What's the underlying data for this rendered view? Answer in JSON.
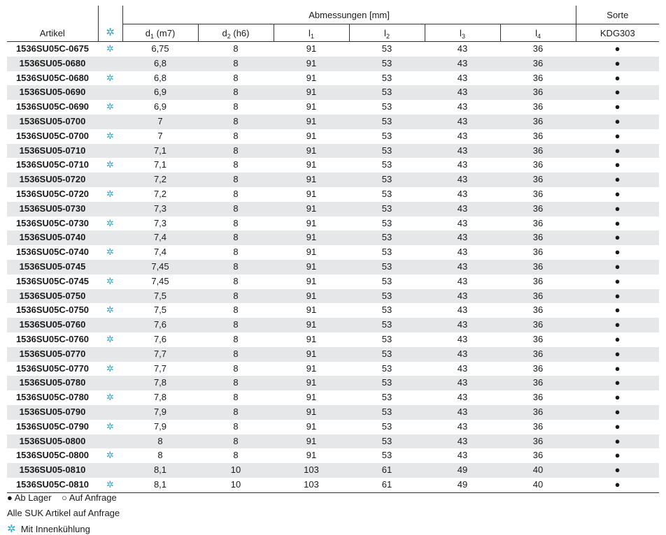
{
  "header": {
    "artikel": "Artikel",
    "ice_symbol": "✲",
    "abmessungen": "Abmessungen [mm]",
    "sorte": "Sorte",
    "d1": "d",
    "d1_sub": "1",
    "d1_tol": " (m7)",
    "d2": "d",
    "d2_sub": "2",
    "d2_tol": " (h6)",
    "l1": "l",
    "l1_sub": "1",
    "l2": "l",
    "l2_sub": "2",
    "l3": "l",
    "l3_sub": "3",
    "l4": "l",
    "l4_sub": "4",
    "kdg": "KDG303"
  },
  "rows": [
    {
      "artikel": "1536SU05C-0675",
      "ice": "✲",
      "d1": "6,75",
      "d2": "8",
      "l1": "91",
      "l2": "53",
      "l3": "43",
      "l4": "36",
      "sorte": "●"
    },
    {
      "artikel": "1536SU05-0680",
      "ice": "",
      "d1": "6,8",
      "d2": "8",
      "l1": "91",
      "l2": "53",
      "l3": "43",
      "l4": "36",
      "sorte": "●"
    },
    {
      "artikel": "1536SU05C-0680",
      "ice": "✲",
      "d1": "6,8",
      "d2": "8",
      "l1": "91",
      "l2": "53",
      "l3": "43",
      "l4": "36",
      "sorte": "●"
    },
    {
      "artikel": "1536SU05-0690",
      "ice": "",
      "d1": "6,9",
      "d2": "8",
      "l1": "91",
      "l2": "53",
      "l3": "43",
      "l4": "36",
      "sorte": "●"
    },
    {
      "artikel": "1536SU05C-0690",
      "ice": "✲",
      "d1": "6,9",
      "d2": "8",
      "l1": "91",
      "l2": "53",
      "l3": "43",
      "l4": "36",
      "sorte": "●"
    },
    {
      "artikel": "1536SU05-0700",
      "ice": "",
      "d1": "7",
      "d2": "8",
      "l1": "91",
      "l2": "53",
      "l3": "43",
      "l4": "36",
      "sorte": "●"
    },
    {
      "artikel": "1536SU05C-0700",
      "ice": "✲",
      "d1": "7",
      "d2": "8",
      "l1": "91",
      "l2": "53",
      "l3": "43",
      "l4": "36",
      "sorte": "●"
    },
    {
      "artikel": "1536SU05-0710",
      "ice": "",
      "d1": "7,1",
      "d2": "8",
      "l1": "91",
      "l2": "53",
      "l3": "43",
      "l4": "36",
      "sorte": "●"
    },
    {
      "artikel": "1536SU05C-0710",
      "ice": "✲",
      "d1": "7,1",
      "d2": "8",
      "l1": "91",
      "l2": "53",
      "l3": "43",
      "l4": "36",
      "sorte": "●"
    },
    {
      "artikel": "1536SU05-0720",
      "ice": "",
      "d1": "7,2",
      "d2": "8",
      "l1": "91",
      "l2": "53",
      "l3": "43",
      "l4": "36",
      "sorte": "●"
    },
    {
      "artikel": "1536SU05C-0720",
      "ice": "✲",
      "d1": "7,2",
      "d2": "8",
      "l1": "91",
      "l2": "53",
      "l3": "43",
      "l4": "36",
      "sorte": "●"
    },
    {
      "artikel": "1536SU05-0730",
      "ice": "",
      "d1": "7,3",
      "d2": "8",
      "l1": "91",
      "l2": "53",
      "l3": "43",
      "l4": "36",
      "sorte": "●"
    },
    {
      "artikel": "1536SU05C-0730",
      "ice": "✲",
      "d1": "7,3",
      "d2": "8",
      "l1": "91",
      "l2": "53",
      "l3": "43",
      "l4": "36",
      "sorte": "●"
    },
    {
      "artikel": "1536SU05-0740",
      "ice": "",
      "d1": "7,4",
      "d2": "8",
      "l1": "91",
      "l2": "53",
      "l3": "43",
      "l4": "36",
      "sorte": "●"
    },
    {
      "artikel": "1536SU05C-0740",
      "ice": "✲",
      "d1": "7,4",
      "d2": "8",
      "l1": "91",
      "l2": "53",
      "l3": "43",
      "l4": "36",
      "sorte": "●"
    },
    {
      "artikel": "1536SU05-0745",
      "ice": "",
      "d1": "7,45",
      "d2": "8",
      "l1": "91",
      "l2": "53",
      "l3": "43",
      "l4": "36",
      "sorte": "●"
    },
    {
      "artikel": "1536SU05C-0745",
      "ice": "✲",
      "d1": "7,45",
      "d2": "8",
      "l1": "91",
      "l2": "53",
      "l3": "43",
      "l4": "36",
      "sorte": "●"
    },
    {
      "artikel": "1536SU05-0750",
      "ice": "",
      "d1": "7,5",
      "d2": "8",
      "l1": "91",
      "l2": "53",
      "l3": "43",
      "l4": "36",
      "sorte": "●"
    },
    {
      "artikel": "1536SU05C-0750",
      "ice": "✲",
      "d1": "7,5",
      "d2": "8",
      "l1": "91",
      "l2": "53",
      "l3": "43",
      "l4": "36",
      "sorte": "●"
    },
    {
      "artikel": "1536SU05-0760",
      "ice": "",
      "d1": "7,6",
      "d2": "8",
      "l1": "91",
      "l2": "53",
      "l3": "43",
      "l4": "36",
      "sorte": "●"
    },
    {
      "artikel": "1536SU05C-0760",
      "ice": "✲",
      "d1": "7,6",
      "d2": "8",
      "l1": "91",
      "l2": "53",
      "l3": "43",
      "l4": "36",
      "sorte": "●"
    },
    {
      "artikel": "1536SU05-0770",
      "ice": "",
      "d1": "7,7",
      "d2": "8",
      "l1": "91",
      "l2": "53",
      "l3": "43",
      "l4": "36",
      "sorte": "●"
    },
    {
      "artikel": "1536SU05C-0770",
      "ice": "✲",
      "d1": "7,7",
      "d2": "8",
      "l1": "91",
      "l2": "53",
      "l3": "43",
      "l4": "36",
      "sorte": "●"
    },
    {
      "artikel": "1536SU05-0780",
      "ice": "",
      "d1": "7,8",
      "d2": "8",
      "l1": "91",
      "l2": "53",
      "l3": "43",
      "l4": "36",
      "sorte": "●"
    },
    {
      "artikel": "1536SU05C-0780",
      "ice": "✲",
      "d1": "7,8",
      "d2": "8",
      "l1": "91",
      "l2": "53",
      "l3": "43",
      "l4": "36",
      "sorte": "●"
    },
    {
      "artikel": "1536SU05-0790",
      "ice": "",
      "d1": "7,9",
      "d2": "8",
      "l1": "91",
      "l2": "53",
      "l3": "43",
      "l4": "36",
      "sorte": "●"
    },
    {
      "artikel": "1536SU05C-0790",
      "ice": "✲",
      "d1": "7,9",
      "d2": "8",
      "l1": "91",
      "l2": "53",
      "l3": "43",
      "l4": "36",
      "sorte": "●"
    },
    {
      "artikel": "1536SU05-0800",
      "ice": "",
      "d1": "8",
      "d2": "8",
      "l1": "91",
      "l2": "53",
      "l3": "43",
      "l4": "36",
      "sorte": "●"
    },
    {
      "artikel": "1536SU05C-0800",
      "ice": "✲",
      "d1": "8",
      "d2": "8",
      "l1": "91",
      "l2": "53",
      "l3": "43",
      "l4": "36",
      "sorte": "●"
    },
    {
      "artikel": "1536SU05-0810",
      "ice": "",
      "d1": "8,1",
      "d2": "10",
      "l1": "103",
      "l2": "61",
      "l3": "49",
      "l4": "40",
      "sorte": "●"
    },
    {
      "artikel": "1536SU05C-0810",
      "ice": "✲",
      "d1": "8,1",
      "d2": "10",
      "l1": "103",
      "l2": "61",
      "l3": "49",
      "l4": "40",
      "sorte": "●"
    }
  ],
  "legend": {
    "ab_lager_symbol": "●",
    "ab_lager": "Ab Lager",
    "auf_anfrage_symbol": "○",
    "auf_anfrage": "Auf Anfrage",
    "suk_note": "Alle SUK Artikel auf Anfrage",
    "ice_symbol": "✲",
    "innenkuehlung": "Mit Innenkühlung"
  },
  "colors": {
    "accent_ice": "#2aa9c8",
    "row_stripe": "#e6e7e8"
  }
}
